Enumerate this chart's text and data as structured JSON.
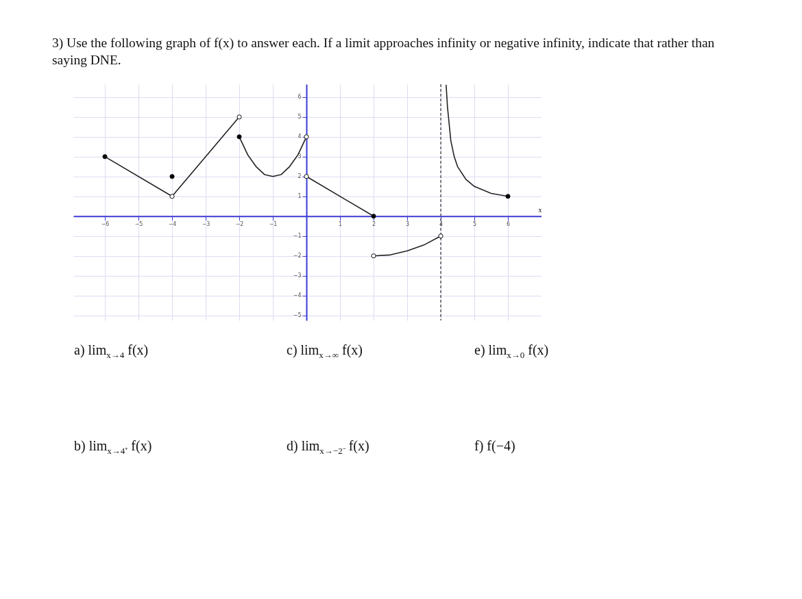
{
  "chart_data": {
    "type": "line",
    "title": "3) Use the following graph of f(x) to answer each.  If a limit approaches infinity or negative infinity, indicate that rather than saying DNE.",
    "xlabel": "x",
    "xlim": [
      -6.94,
      7.0
    ],
    "ylim": [
      -5.25,
      6.65
    ],
    "xticks": [
      -6,
      -5,
      -4,
      -3,
      -2,
      -1,
      1,
      2,
      3,
      4,
      5,
      6
    ],
    "yticks": [
      -5,
      -4,
      -3,
      -2,
      -1,
      1,
      2,
      3,
      4,
      5,
      6
    ],
    "grid": true,
    "ref_lines": [
      {
        "axis": "x",
        "value": 4,
        "line_style": "dashed",
        "color": "#555555"
      }
    ],
    "series": [
      {
        "color": "#222222",
        "x": [
          -6,
          -4
        ],
        "values": [
          3,
          1
        ]
      },
      {
        "color": "#222222",
        "x": [
          -4,
          -2
        ],
        "values": [
          1,
          5
        ]
      },
      {
        "color": "#222222",
        "x": [
          -2,
          -1.75,
          -1.5,
          -1.25,
          -1,
          -0.75,
          -0.5,
          -0.25,
          0
        ],
        "values": [
          4,
          3.1,
          2.5,
          2.1,
          2,
          2.1,
          2.5,
          3.1,
          4
        ]
      },
      {
        "color": "#222222",
        "x": [
          0,
          2
        ],
        "values": [
          2,
          0
        ]
      },
      {
        "color": "#222222",
        "x": [
          2,
          2.5,
          3,
          3.5,
          4
        ],
        "values": [
          -2,
          -1.95,
          -1.75,
          -1.45,
          -1
        ]
      },
      {
        "color": "#222222",
        "x": [
          4.16,
          4.2,
          4.3,
          4.4,
          4.5,
          4.75,
          5,
          5.5,
          6
        ],
        "values": [
          6.6,
          5.5,
          3.8,
          3,
          2.5,
          1.85,
          1.5,
          1.15,
          1
        ]
      },
      {
        "type": "scatter",
        "marker": "circle",
        "color": "#000000",
        "x": [
          -6,
          -4,
          -2,
          2,
          6
        ],
        "values": [
          3,
          2,
          4,
          0,
          1
        ]
      },
      {
        "type": "scatter",
        "marker": "circle",
        "color": "#ffffff",
        "x": [
          -4,
          -2,
          0,
          0,
          2,
          4
        ],
        "values": [
          1,
          5,
          4,
          2,
          -2,
          -1
        ]
      }
    ],
    "annotations": [
      "a) lim$_{x→4}$ f(x)",
      "c) lim$_{x→∞}$ f(x)",
      "e) lim$_{x→0}$ f(x)",
      "b) lim$_{x→4⁺}$ f(x)",
      "d) lim$_{x→−2⁻}$ f(x)",
      "f) f(−4)"
    ]
  }
}
